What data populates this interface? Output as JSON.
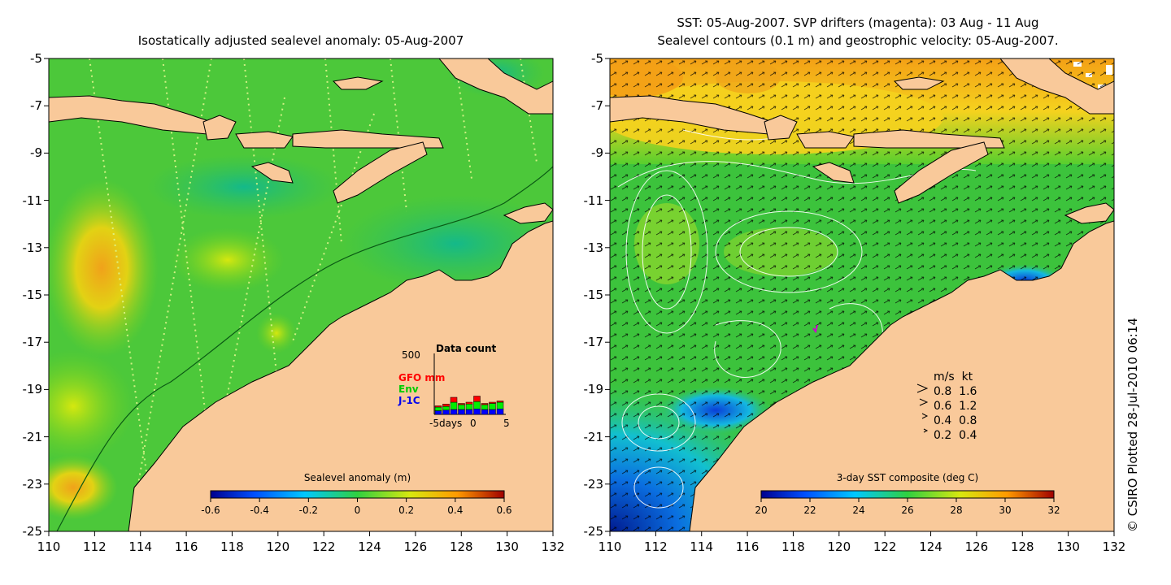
{
  "left_panel": {
    "title": "Isostatically adjusted sealevel anomaly: 05-Aug-2007",
    "x_ticks": [
      "110",
      "112",
      "114",
      "116",
      "118",
      "120",
      "122",
      "124",
      "126",
      "128",
      "130",
      "132"
    ],
    "y_ticks": [
      "-5",
      "-7",
      "-9",
      "-11",
      "-13",
      "-15",
      "-17",
      "-19",
      "-21",
      "-23",
      "-25"
    ],
    "colorbar": {
      "title": "Sealevel anomaly (m)",
      "ticks": [
        "-0.6",
        "-0.4",
        "-0.2",
        "0",
        "0.2",
        "0.4",
        "0.6"
      ]
    },
    "data_count": {
      "title": "Data count",
      "y_max": "500",
      "legend": [
        {
          "label": "GFO mm",
          "color": "#ff0000"
        },
        {
          "label": "Env",
          "color": "#00ee00"
        },
        {
          "label": "J-1C",
          "color": "#0000ff"
        }
      ],
      "x_label_left": "-5days",
      "x_label_mid": "0",
      "x_label_right": "5",
      "bars": [
        {
          "day": -5,
          "j1c": 30,
          "env": 30,
          "gfo": 10
        },
        {
          "day": -4,
          "j1c": 35,
          "env": 30,
          "gfo": 20
        },
        {
          "day": -3,
          "j1c": 40,
          "env": 60,
          "gfo": 40
        },
        {
          "day": -2,
          "j1c": 40,
          "env": 40,
          "gfo": 10
        },
        {
          "day": -1,
          "j1c": 40,
          "env": 45,
          "gfo": 15
        },
        {
          "day": 0,
          "j1c": 45,
          "env": 60,
          "gfo": 45
        },
        {
          "day": 1,
          "j1c": 40,
          "env": 40,
          "gfo": 10
        },
        {
          "day": 2,
          "j1c": 40,
          "env": 50,
          "gfo": 10
        },
        {
          "day": 3,
          "j1c": 45,
          "env": 55,
          "gfo": 10
        }
      ]
    }
  },
  "right_panel": {
    "title_line1": "SST: 05-Aug-2007. SVP drifters (magenta): 03 Aug - 11 Aug",
    "title_line2": "Sealevel contours (0.1 m) and geostrophic velocity: 05-Aug-2007.",
    "x_ticks": [
      "110",
      "112",
      "114",
      "116",
      "118",
      "120",
      "122",
      "124",
      "126",
      "128",
      "130",
      "132"
    ],
    "y_ticks": [
      "-5",
      "-7",
      "-9",
      "-11",
      "-13",
      "-15",
      "-17",
      "-19",
      "-21",
      "-23",
      "-25"
    ],
    "colorbar": {
      "title": "3-day SST composite (deg C)",
      "ticks": [
        "20",
        "22",
        "24",
        "26",
        "28",
        "30",
        "32"
      ]
    },
    "velocity_legend": {
      "header_ms": "m/s",
      "header_kt": "kt",
      "rows": [
        {
          "ms": "0.8",
          "kt": "1.6"
        },
        {
          "ms": "0.6",
          "kt": "1.2"
        },
        {
          "ms": "0.4",
          "kt": "0.8"
        },
        {
          "ms": "0.2",
          "kt": "0.4"
        }
      ]
    }
  },
  "credit": "© CSIRO Plotted 28-Jul-2010 06:14",
  "colors": {
    "land": "#f9c99a",
    "sea_green": "#3cc33c",
    "sst_warm": "#f5d21e"
  }
}
